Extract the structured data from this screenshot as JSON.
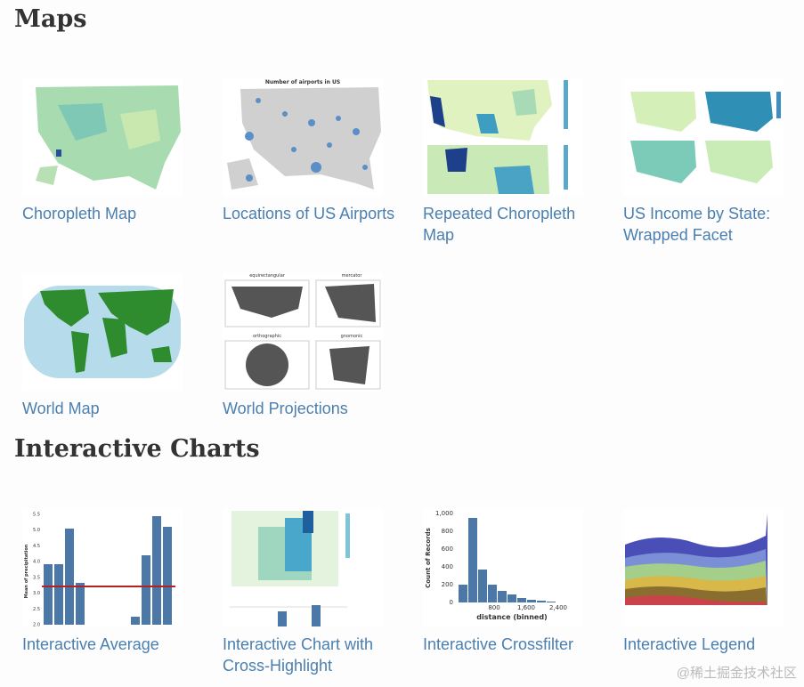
{
  "sections": [
    {
      "title": "Maps",
      "items": [
        {
          "title": "Choropleth Map"
        },
        {
          "title": "Locations of US Airports",
          "thumbnail_title": "Number of airports in US"
        },
        {
          "title": "Repeated Choropleth Map"
        },
        {
          "title": "US Income by State: Wrapped Facet"
        },
        {
          "title": "World Map"
        },
        {
          "title": "World Projections",
          "thumbnail_labels": [
            "equirectangular",
            "mercator",
            "orthographic",
            "gnomonic"
          ]
        }
      ]
    },
    {
      "title": "Interactive Charts",
      "items": [
        {
          "title": "Interactive Average",
          "thumbnail_axis_title": "Mean of precipitation",
          "thumbnail_ticks": [
            "5.5",
            "5.0",
            "4.5",
            "4.0",
            "3.5",
            "3.0",
            "2.5",
            "2.0"
          ]
        },
        {
          "title": "Interactive Chart with Cross-Highlight"
        },
        {
          "title": "Interactive Crossfilter",
          "thumbnail_y_title": "Count of Records",
          "thumbnail_x_title": "distance (binned)",
          "thumbnail_yticks": [
            "1,000",
            "800",
            "600",
            "400",
            "200",
            "0"
          ],
          "thumbnail_xticks": [
            "800",
            "1,600",
            "2,400"
          ]
        },
        {
          "title": "Interactive Legend"
        }
      ]
    }
  ],
  "watermark": "@稀土掘金技术社区"
}
